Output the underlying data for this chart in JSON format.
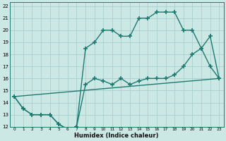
{
  "xlabel": "Humidex (Indice chaleur)",
  "xlim": [
    -0.5,
    23.5
  ],
  "ylim": [
    12,
    22.3
  ],
  "yticks": [
    12,
    13,
    14,
    15,
    16,
    17,
    18,
    19,
    20,
    21,
    22
  ],
  "xticks": [
    0,
    1,
    2,
    3,
    4,
    5,
    6,
    7,
    8,
    9,
    10,
    11,
    12,
    13,
    14,
    15,
    16,
    17,
    18,
    19,
    20,
    21,
    22,
    23
  ],
  "bg_color": "#cce8e5",
  "grid_color": "#aacfcc",
  "line_color": "#1e7a70",
  "line_width": 1.0,
  "marker": "+",
  "marker_size": 4,
  "marker_ew": 1.2,
  "line1_x": [
    0,
    1,
    2,
    3,
    4,
    5,
    6,
    7,
    8,
    9,
    10,
    11,
    12,
    13,
    14,
    15,
    16,
    17,
    18,
    19,
    20,
    21,
    22,
    23
  ],
  "line1_y": [
    14.5,
    13.5,
    13.0,
    13.0,
    13.0,
    12.2,
    11.8,
    12.0,
    15.5,
    16.0,
    15.8,
    15.5,
    16.0,
    15.5,
    15.8,
    16.0,
    16.0,
    16.0,
    16.3,
    17.0,
    18.0,
    18.5,
    19.5,
    16.0
  ],
  "line2_x": [
    0,
    1,
    2,
    3,
    4,
    5,
    6,
    7,
    8,
    9,
    10,
    11,
    12,
    13,
    14,
    15,
    16,
    17,
    18,
    19,
    20,
    21,
    22,
    23
  ],
  "line2_y": [
    14.5,
    13.5,
    13.0,
    13.0,
    13.0,
    12.2,
    11.8,
    12.0,
    18.5,
    19.0,
    20.0,
    20.0,
    19.5,
    19.5,
    21.0,
    21.0,
    21.5,
    21.5,
    21.5,
    20.0,
    20.0,
    18.5,
    17.0,
    16.0
  ],
  "line3_x": [
    0,
    23
  ],
  "line3_y": [
    14.5,
    16.0
  ]
}
